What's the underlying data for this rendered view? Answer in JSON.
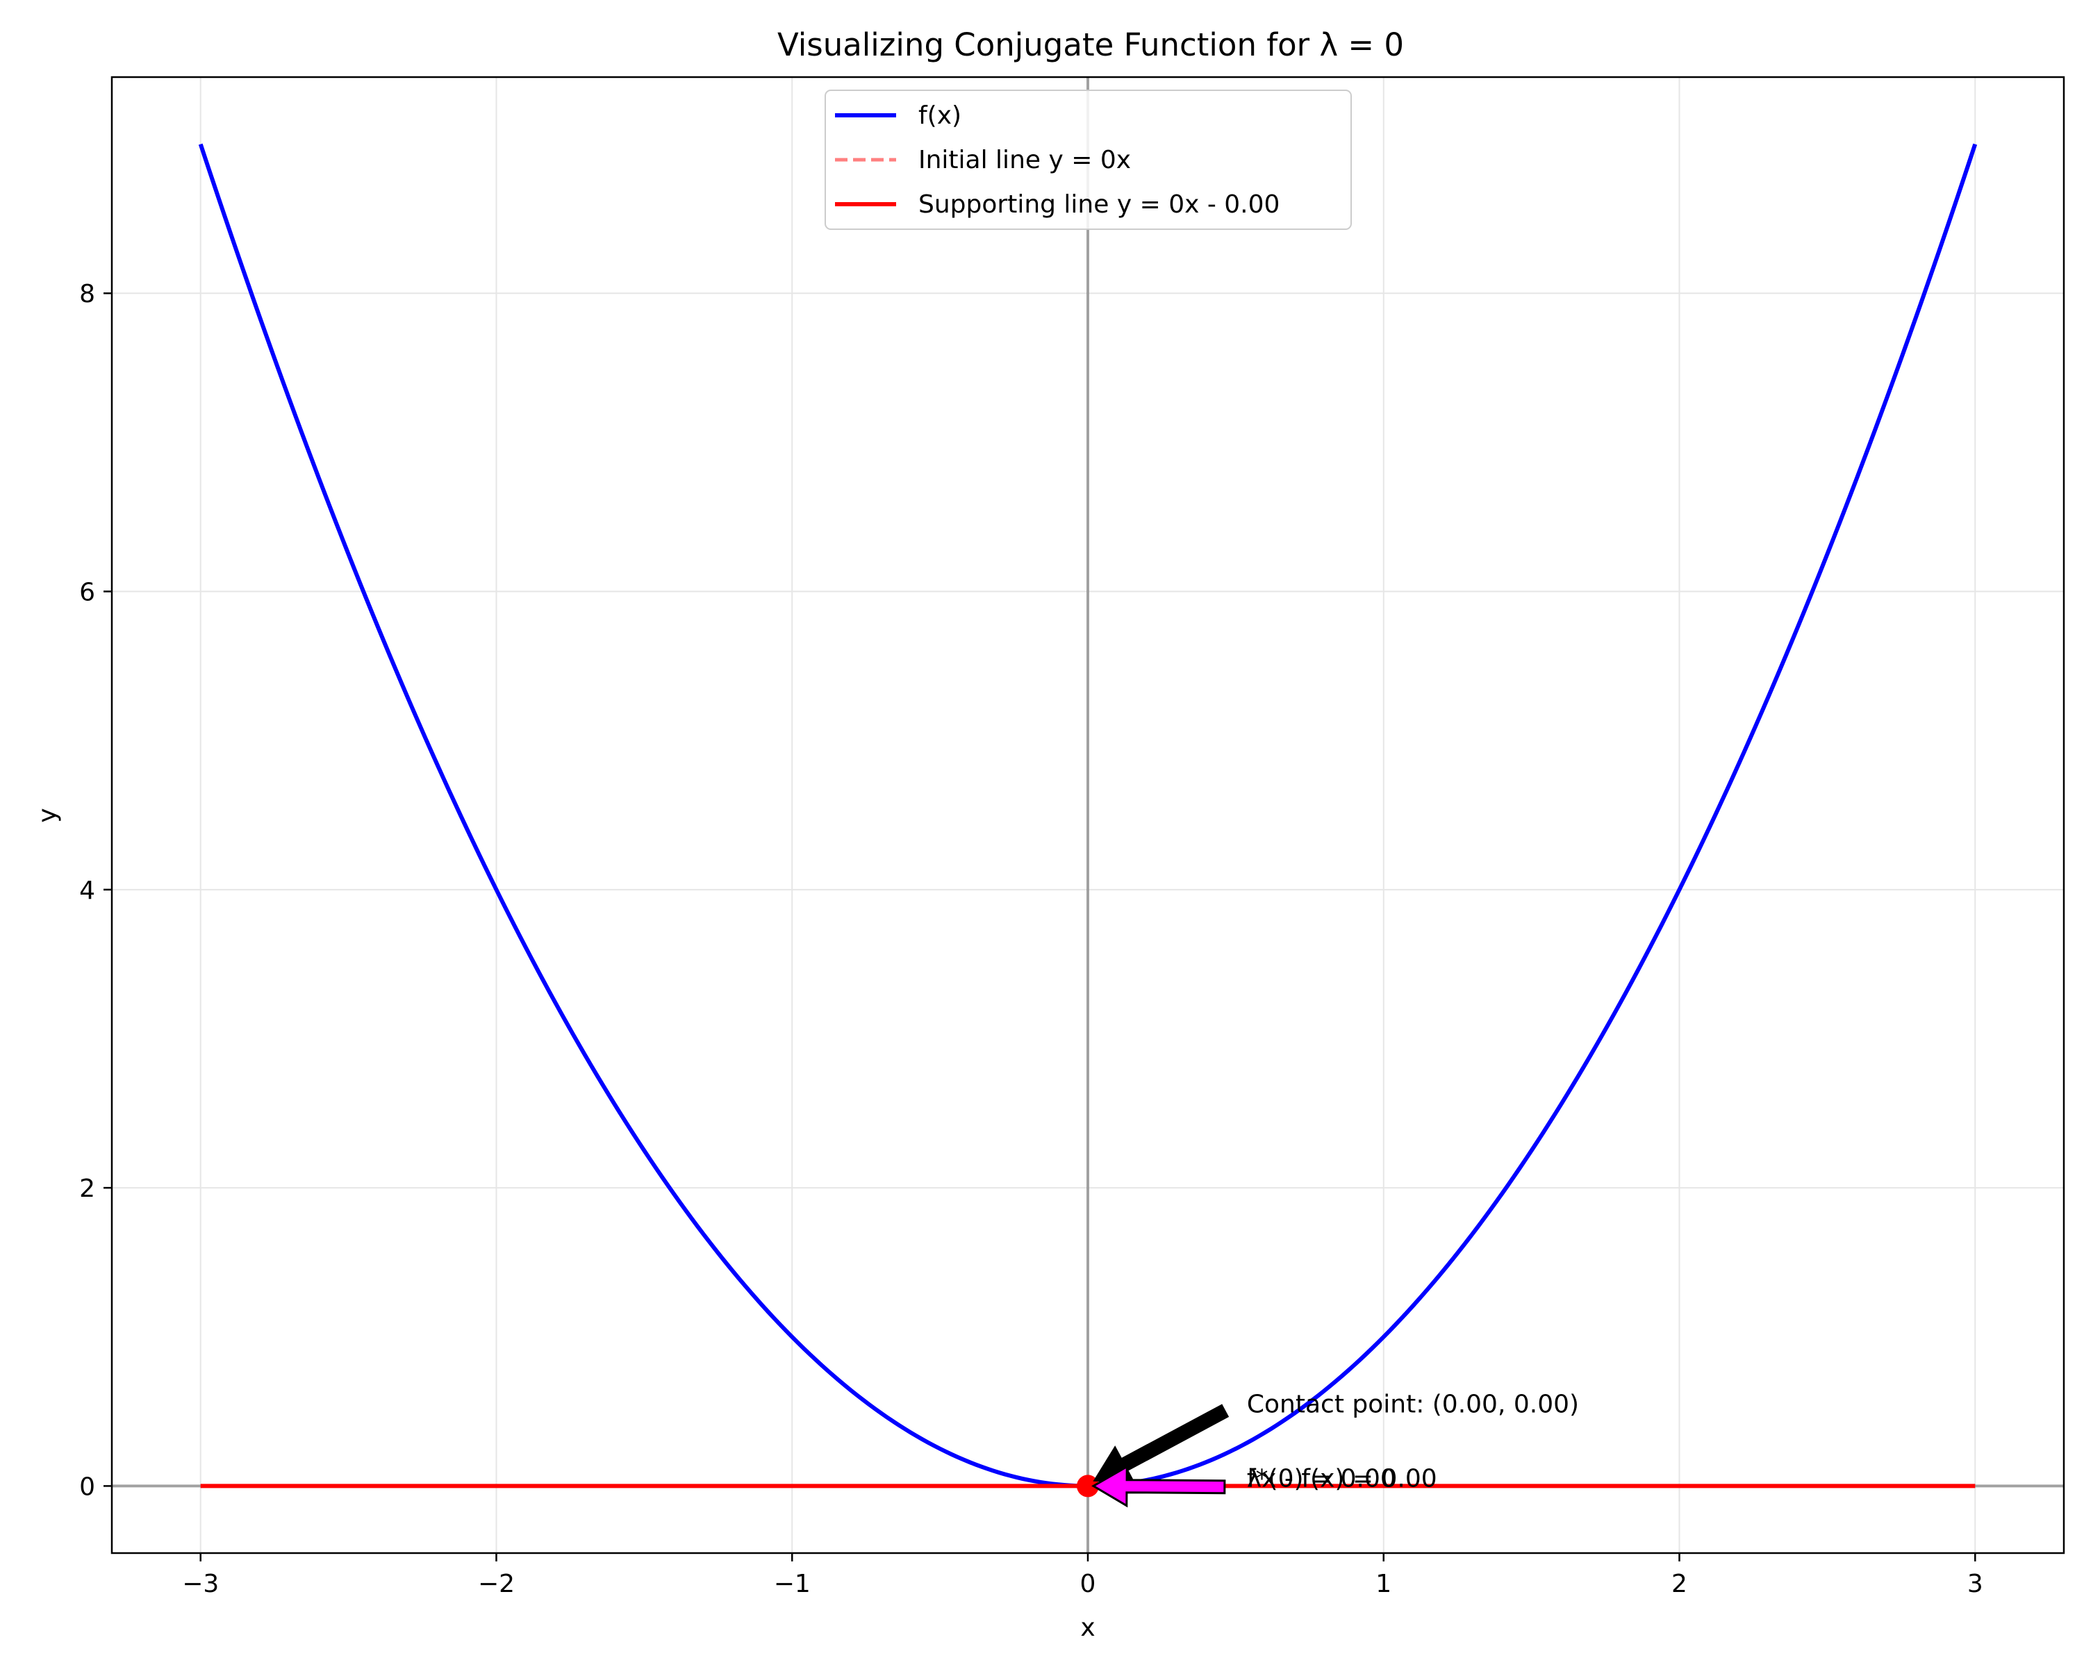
{
  "chart_data": {
    "type": "line",
    "title": "Visualizing Conjugate Function for λ = 0",
    "xlabel": "x",
    "ylabel": "y",
    "xlim": [
      -3.3,
      3.3
    ],
    "ylim": [
      -0.45,
      9.45
    ],
    "xticks": [
      -3,
      -2,
      -1,
      0,
      1,
      2,
      3
    ],
    "xtick_labels": [
      "−3",
      "−2",
      "−1",
      "0",
      "1",
      "2",
      "3"
    ],
    "yticks": [
      0,
      2,
      4,
      6,
      8
    ],
    "ytick_labels": [
      "0",
      "2",
      "4",
      "6",
      "8"
    ],
    "grid": true,
    "legend_placement": "upper-center",
    "series": [
      {
        "name": "f(x)",
        "function": "x^2",
        "x_range": [
          -3,
          3
        ],
        "color": "#0000ff",
        "style": "solid"
      },
      {
        "name": "Initial line y = 0x",
        "slope": 0,
        "intercept": 0,
        "x_range": [
          -3,
          3
        ],
        "color": "#ff8080",
        "style": "dashed"
      },
      {
        "name": "Supporting line y = 0x - 0.00",
        "slope": 0,
        "intercept": 0,
        "x_range": [
          -3,
          3
        ],
        "color": "#ff0000",
        "style": "solid"
      }
    ],
    "contact_point": {
      "x": 0,
      "y": 0,
      "color": "#ff0000"
    },
    "annotations": [
      {
        "text": "Contact point: (0.00, 0.00)",
        "x": 0.5,
        "y": 0.55,
        "target_x": 0,
        "target_y": 0,
        "arrow_color": "#000000"
      },
      {
        "text": "f*(0) = 0.00",
        "x": 0.5,
        "y": 0.05,
        "target_x": 0,
        "target_y": 0,
        "arrow_color": "#ff00ff"
      },
      {
        "text": "λx - f(x) = 0.00",
        "x": 0.5,
        "y": 0.05
      }
    ],
    "reference_lines": {
      "color": "#808080",
      "x": 0,
      "y": 0
    }
  }
}
